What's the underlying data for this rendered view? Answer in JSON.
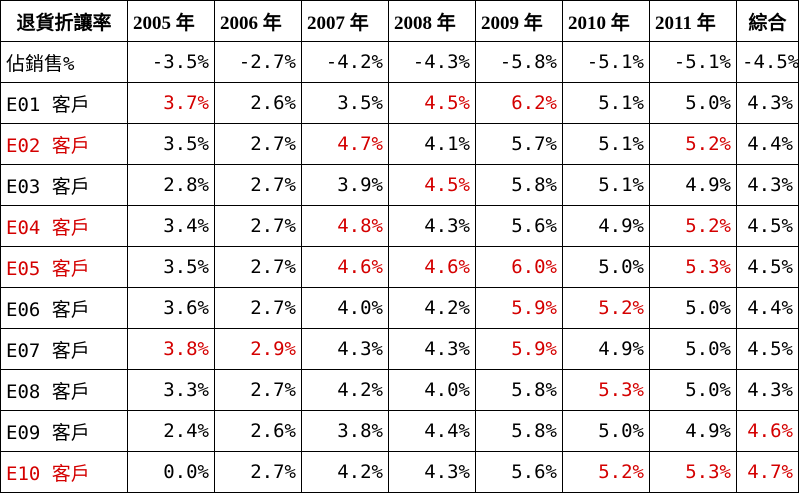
{
  "colors": {
    "text": "#000000",
    "highlight": "#d40000",
    "border": "#000000"
  },
  "table": {
    "header": {
      "corner": "退貨折讓率",
      "years": [
        "2005 年",
        "2006 年",
        "2007 年",
        "2008 年",
        "2009 年",
        "2010 年",
        "2011 年"
      ],
      "total": "綜合"
    },
    "rows": [
      {
        "label": "佔銷售%",
        "label_hl": false,
        "values": [
          "-3.5%",
          "-2.7%",
          "-4.2%",
          "-4.3%",
          "-5.8%",
          "-5.1%",
          "-5.1%",
          "-4.5%"
        ],
        "hl": [
          false,
          false,
          false,
          false,
          false,
          false,
          false,
          false
        ]
      },
      {
        "label": "E01 客戶",
        "label_hl": false,
        "values": [
          "3.7%",
          "2.6%",
          "3.5%",
          "4.5%",
          "6.2%",
          "5.1%",
          "5.0%",
          "4.3%"
        ],
        "hl": [
          true,
          false,
          false,
          true,
          true,
          false,
          false,
          false
        ]
      },
      {
        "label": "E02 客戶",
        "label_hl": true,
        "values": [
          "3.5%",
          "2.7%",
          "4.7%",
          "4.1%",
          "5.7%",
          "5.1%",
          "5.2%",
          "4.4%"
        ],
        "hl": [
          false,
          false,
          true,
          false,
          false,
          false,
          true,
          false
        ]
      },
      {
        "label": "E03 客戶",
        "label_hl": false,
        "values": [
          "2.8%",
          "2.7%",
          "3.9%",
          "4.5%",
          "5.8%",
          "5.1%",
          "4.9%",
          "4.3%"
        ],
        "hl": [
          false,
          false,
          false,
          true,
          false,
          false,
          false,
          false
        ]
      },
      {
        "label": "E04 客戶",
        "label_hl": true,
        "values": [
          "3.4%",
          "2.7%",
          "4.8%",
          "4.3%",
          "5.6%",
          "4.9%",
          "5.2%",
          "4.5%"
        ],
        "hl": [
          false,
          false,
          true,
          false,
          false,
          false,
          true,
          false
        ]
      },
      {
        "label": "E05 客戶",
        "label_hl": true,
        "values": [
          "3.5%",
          "2.7%",
          "4.6%",
          "4.6%",
          "6.0%",
          "5.0%",
          "5.3%",
          "4.5%"
        ],
        "hl": [
          false,
          false,
          true,
          true,
          true,
          false,
          true,
          false
        ]
      },
      {
        "label": "E06 客戶",
        "label_hl": false,
        "values": [
          "3.6%",
          "2.7%",
          "4.0%",
          "4.2%",
          "5.9%",
          "5.2%",
          "5.0%",
          "4.4%"
        ],
        "hl": [
          false,
          false,
          false,
          false,
          true,
          true,
          false,
          false
        ]
      },
      {
        "label": "E07 客戶",
        "label_hl": false,
        "values": [
          "3.8%",
          "2.9%",
          "4.3%",
          "4.3%",
          "5.9%",
          "4.9%",
          "5.0%",
          "4.5%"
        ],
        "hl": [
          true,
          true,
          false,
          false,
          true,
          false,
          false,
          false
        ]
      },
      {
        "label": "E08 客戶",
        "label_hl": false,
        "values": [
          "3.3%",
          "2.7%",
          "4.2%",
          "4.0%",
          "5.8%",
          "5.3%",
          "5.0%",
          "4.3%"
        ],
        "hl": [
          false,
          false,
          false,
          false,
          false,
          true,
          false,
          false
        ]
      },
      {
        "label": "E09 客戶",
        "label_hl": false,
        "values": [
          "2.4%",
          "2.6%",
          "3.8%",
          "4.4%",
          "5.8%",
          "5.0%",
          "4.9%",
          "4.6%"
        ],
        "hl": [
          false,
          false,
          false,
          false,
          false,
          false,
          false,
          true
        ]
      },
      {
        "label": "E10 客戶",
        "label_hl": true,
        "values": [
          "0.0%",
          "2.7%",
          "4.2%",
          "4.3%",
          "5.6%",
          "5.2%",
          "5.3%",
          "4.7%"
        ],
        "hl": [
          false,
          false,
          false,
          false,
          false,
          true,
          true,
          true
        ]
      }
    ]
  }
}
